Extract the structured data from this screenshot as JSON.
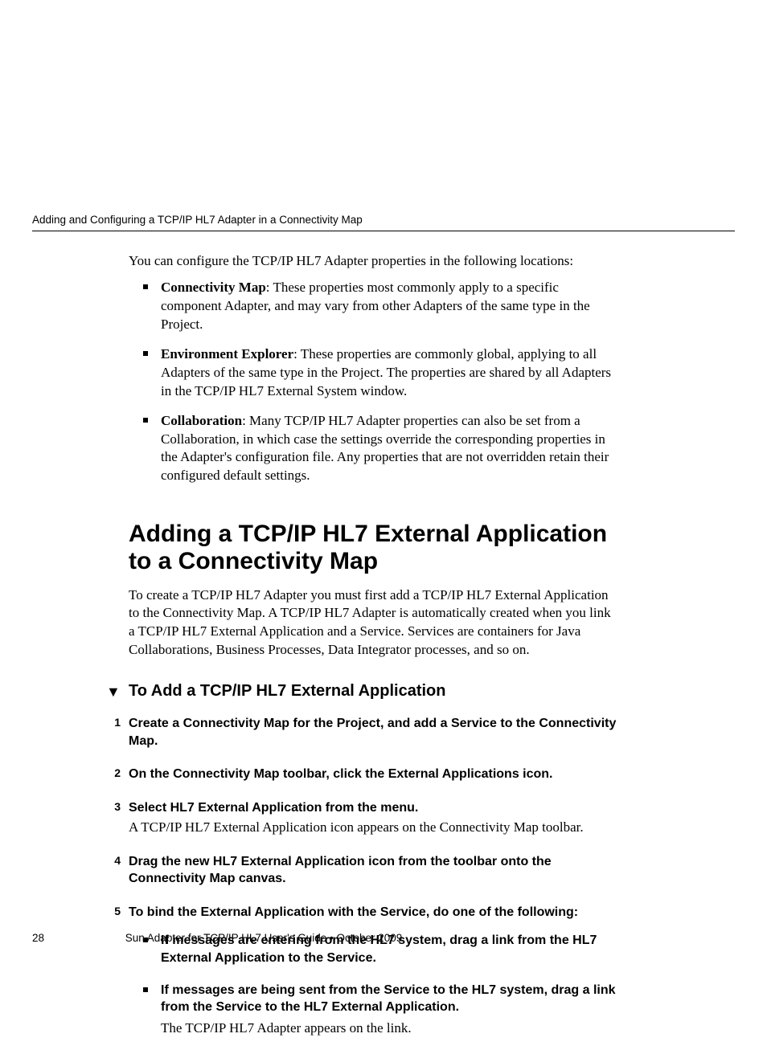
{
  "running_header": "Adding and Configuring a TCP/IP HL7 Adapter in a Connectivity Map",
  "intro": "You can configure the TCP/IP HL7 Adapter properties in the following locations:",
  "config_bullets": [
    {
      "term": "Connectivity Map",
      "text": ": These properties most commonly apply to a specific component Adapter, and may vary from other Adapters of the same type in the Project."
    },
    {
      "term": "Environment Explorer",
      "text": ": These properties are commonly global, applying to all Adapters of the same type in the Project. The properties are shared by all Adapters in the TCP/IP HL7 External System window."
    },
    {
      "term": "Collaboration",
      "text": ": Many TCP/IP HL7 Adapter properties can also be set from a Collaboration, in which case the settings override the corresponding properties in the Adapter's configuration file. Any properties that are not overridden retain their configured default settings."
    }
  ],
  "h2": "Adding a TCP/IP HL7 External Application to a Connectivity Map",
  "h2_para": "To create a TCP/IP HL7 Adapter you must first add a TCP/IP HL7 External Application to the Connectivity Map. A TCP/IP HL7 Adapter is automatically created when you link a TCP/IP HL7 External Application and a Service. Services are containers for Java Collaborations, Business Processes, Data Integrator processes, and so on.",
  "h3_marker": "▼",
  "h3": "To Add a TCP/IP HL7 External Application",
  "steps": [
    {
      "n": "1",
      "title": "Create a Connectivity Map for the Project, and add a Service to the Connectivity Map.",
      "body": ""
    },
    {
      "n": "2",
      "title": "On the Connectivity Map toolbar, click the External Applications icon.",
      "body": ""
    },
    {
      "n": "3",
      "title": "Select HL7 External Application from the menu.",
      "body": "A TCP/IP HL7 External Application icon appears on the Connectivity Map toolbar."
    },
    {
      "n": "4",
      "title": "Drag the new HL7 External Application icon from the toolbar onto the Connectivity Map canvas.",
      "body": ""
    },
    {
      "n": "5",
      "title": "To bind the External Application with the Service, do one of the following:",
      "body": ""
    }
  ],
  "sub_bullets": [
    {
      "title": "If messages are entering from the HL7 system, drag a link from the HL7 External Application to the Service.",
      "body": ""
    },
    {
      "title": "If messages are being sent from the Service to the HL7 system, drag a link from the Service to the HL7 External Application.",
      "body": "The TCP/IP HL7 Adapter appears on the link."
    }
  ],
  "footer": {
    "page": "28",
    "title": "Sun Adapter for TCP/IP HL7 User's Guide  •  October 2009"
  }
}
